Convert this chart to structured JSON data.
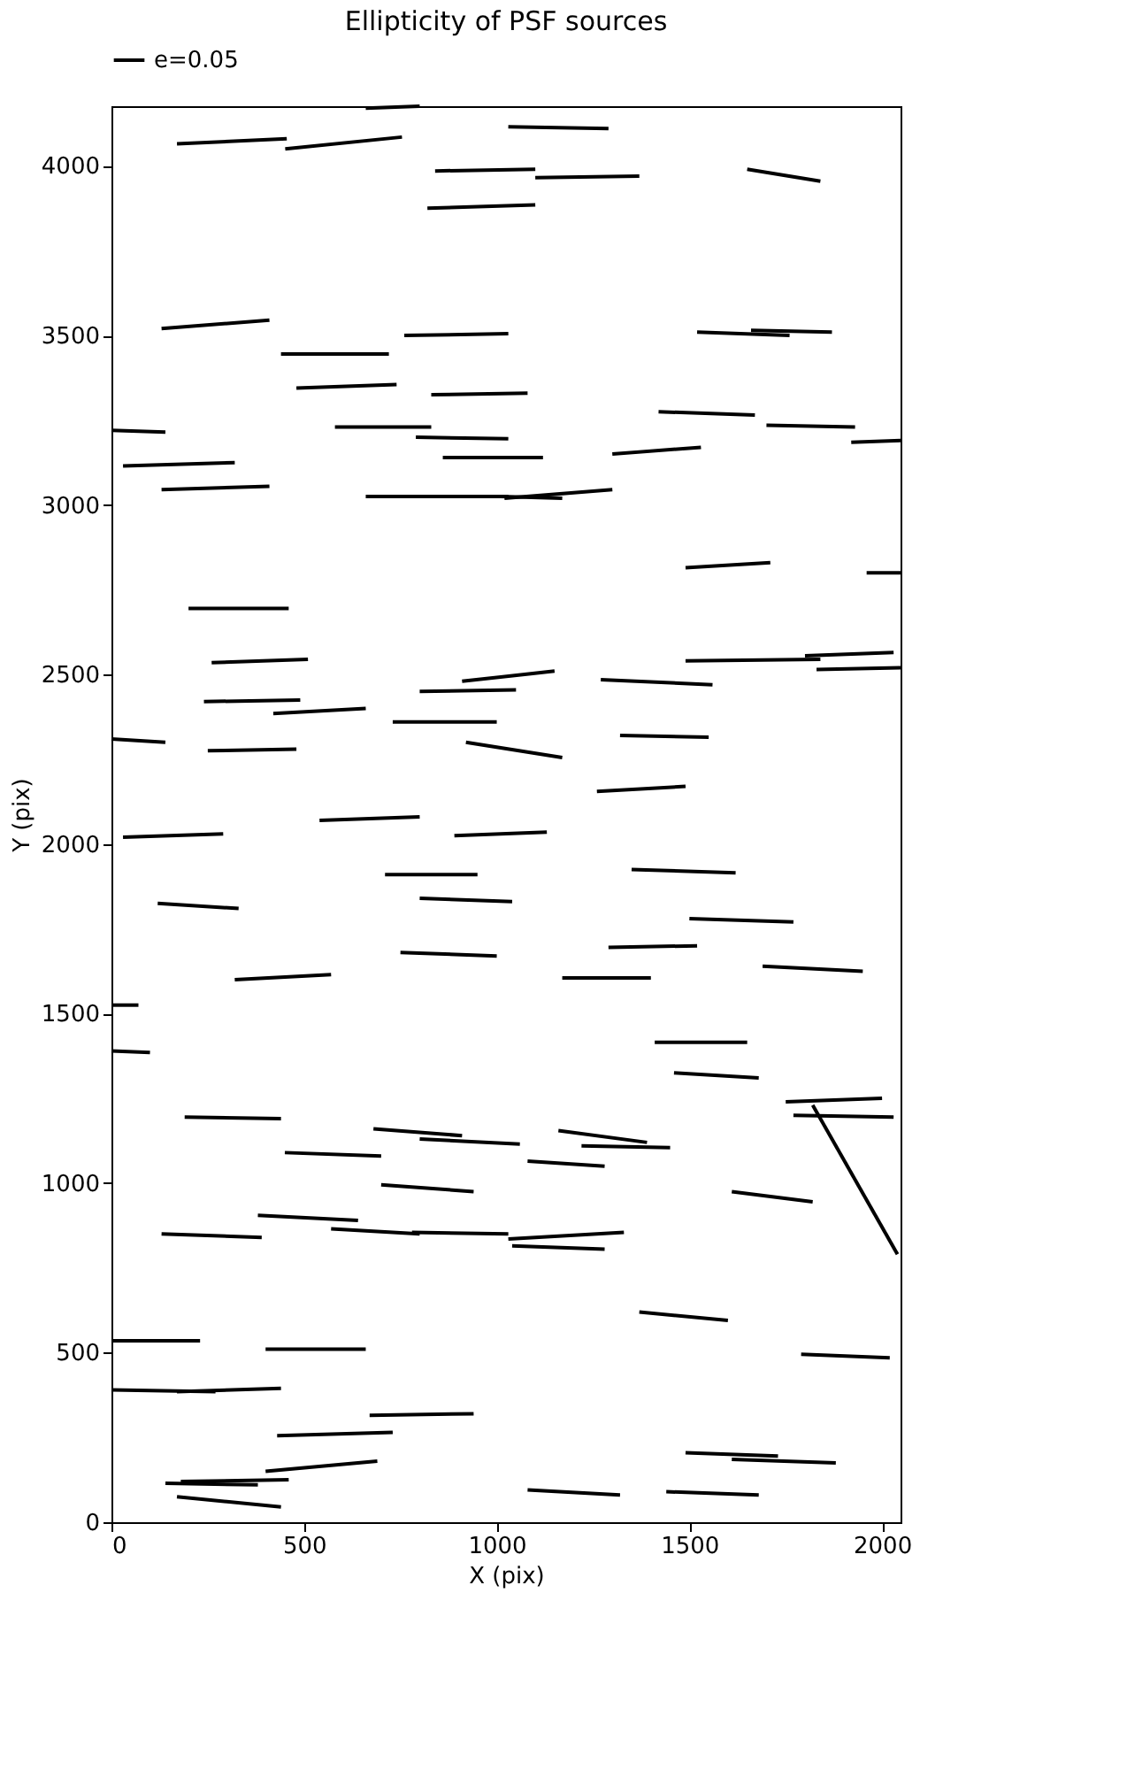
{
  "chart_data": {
    "type": "line",
    "title": "Ellipticity of PSF sources",
    "xlabel": "X (pix)",
    "ylabel": "Y (pix)",
    "xlim": [
      0,
      2048
    ],
    "ylim": [
      0,
      4176
    ],
    "xticks": [
      0,
      500,
      1000,
      1500,
      2000
    ],
    "yticks": [
      0,
      500,
      1000,
      1500,
      2000,
      2500,
      3000,
      3500,
      4000
    ],
    "grid": false,
    "legend": "top left",
    "marker": "none",
    "line_style": "solid",
    "series": [
      {
        "name": "e=0.05",
        "color": "#000000",
        "x": [
          660,
          800
        ],
        "values": [
          4170,
          4176
        ]
      },
      {
        "color": "#000000",
        "x": [
          1030,
          1290
        ],
        "values": [
          4115,
          4110
        ]
      },
      {
        "color": "#000000",
        "x": [
          170,
          455
        ],
        "values": [
          4065,
          4080
        ]
      },
      {
        "color": "#000000",
        "x": [
          451,
          754
        ],
        "values": [
          4050,
          4085
        ]
      },
      {
        "color": "#000000",
        "x": [
          840,
          1100
        ],
        "values": [
          3985,
          3990
        ]
      },
      {
        "color": "#000000",
        "x": [
          1100,
          1370
        ],
        "values": [
          3965,
          3970
        ]
      },
      {
        "color": "#000000",
        "x": [
          1650,
          1840
        ],
        "values": [
          3990,
          3955
        ]
      },
      {
        "color": "#000000",
        "x": [
          820,
          1100
        ],
        "values": [
          3875,
          3885
        ]
      },
      {
        "color": "#000000",
        "x": [
          130,
          410
        ],
        "values": [
          3520,
          3545
        ]
      },
      {
        "color": "#000000",
        "x": [
          440,
          720
        ],
        "values": [
          3445,
          3445
        ]
      },
      {
        "color": "#000000",
        "x": [
          760,
          1030
        ],
        "values": [
          3500,
          3505
        ]
      },
      {
        "color": "#000000",
        "x": [
          1520,
          1760
        ],
        "values": [
          3510,
          3500
        ]
      },
      {
        "color": "#000000",
        "x": [
          1660,
          1870
        ],
        "values": [
          3515,
          3510
        ]
      },
      {
        "color": "#000000",
        "x": [
          480,
          740
        ],
        "values": [
          3345,
          3355
        ]
      },
      {
        "color": "#000000",
        "x": [
          830,
          1080
        ],
        "values": [
          3325,
          3330
        ]
      },
      {
        "color": "#000000",
        "x": [
          0,
          140
        ],
        "values": [
          3220,
          3215
        ]
      },
      {
        "color": "#000000",
        "x": [
          580,
          830
        ],
        "values": [
          3230,
          3230
        ]
      },
      {
        "color": "#000000",
        "x": [
          1420,
          1670
        ],
        "values": [
          3275,
          3265
        ]
      },
      {
        "color": "#000000",
        "x": [
          1700,
          1930
        ],
        "values": [
          3235,
          3230
        ]
      },
      {
        "color": "#000000",
        "x": [
          1920,
          2048
        ],
        "values": [
          3185,
          3190
        ]
      },
      {
        "color": "#000000",
        "x": [
          30,
          320
        ],
        "values": [
          3115,
          3125
        ]
      },
      {
        "color": "#000000",
        "x": [
          790,
          1030
        ],
        "values": [
          3200,
          3195
        ]
      },
      {
        "color": "#000000",
        "x": [
          860,
          1120
        ],
        "values": [
          3140,
          3140
        ]
      },
      {
        "color": "#000000",
        "x": [
          1300,
          1530
        ],
        "values": [
          3150,
          3170
        ]
      },
      {
        "color": "#000000",
        "x": [
          130,
          410
        ],
        "values": [
          3045,
          3055
        ]
      },
      {
        "color": "#000000",
        "x": [
          660,
          1030
        ],
        "values": [
          3025,
          3025
        ]
      },
      {
        "color": "#000000",
        "x": [
          1010,
          1170
        ],
        "values": [
          3025,
          3020
        ]
      },
      {
        "color": "#000000",
        "x": [
          1020,
          1300
        ],
        "values": [
          3020,
          3045
        ]
      },
      {
        "color": "#000000",
        "x": [
          1490,
          1710
        ],
        "values": [
          2815,
          2830
        ]
      },
      {
        "color": "#000000",
        "x": [
          1960,
          2048
        ],
        "values": [
          2800,
          2800
        ]
      },
      {
        "color": "#000000",
        "x": [
          200,
          460
        ],
        "values": [
          2695,
          2695
        ]
      },
      {
        "color": "#000000",
        "x": [
          260,
          510
        ],
        "values": [
          2535,
          2545
        ]
      },
      {
        "color": "#000000",
        "x": [
          910,
          1150
        ],
        "values": [
          2480,
          2510
        ]
      },
      {
        "color": "#000000",
        "x": [
          1270,
          1560
        ],
        "values": [
          2485,
          2470
        ]
      },
      {
        "color": "#000000",
        "x": [
          1490,
          1840
        ],
        "values": [
          2540,
          2545
        ]
      },
      {
        "color": "#000000",
        "x": [
          1800,
          2030
        ],
        "values": [
          2555,
          2565
        ]
      },
      {
        "color": "#000000",
        "x": [
          1830,
          2048
        ],
        "values": [
          2515,
          2520
        ]
      },
      {
        "color": "#000000",
        "x": [
          240,
          490
        ],
        "values": [
          2420,
          2425
        ]
      },
      {
        "color": "#000000",
        "x": [
          420,
          660
        ],
        "values": [
          2385,
          2400
        ]
      },
      {
        "color": "#000000",
        "x": [
          800,
          1050
        ],
        "values": [
          2450,
          2455
        ]
      },
      {
        "color": "#000000",
        "x": [
          730,
          1000
        ],
        "values": [
          2360,
          2360
        ]
      },
      {
        "color": "#000000",
        "x": [
          0,
          140
        ],
        "values": [
          2310,
          2300
        ]
      },
      {
        "color": "#000000",
        "x": [
          920,
          1170
        ],
        "values": [
          2300,
          2255
        ]
      },
      {
        "color": "#000000",
        "x": [
          250,
          480
        ],
        "values": [
          2275,
          2280
        ]
      },
      {
        "color": "#000000",
        "x": [
          1320,
          1550
        ],
        "values": [
          2320,
          2315
        ]
      },
      {
        "color": "#000000",
        "x": [
          1260,
          1490
        ],
        "values": [
          2155,
          2170
        ]
      },
      {
        "color": "#000000",
        "x": [
          30,
          290
        ],
        "values": [
          2020,
          2030
        ]
      },
      {
        "color": "#000000",
        "x": [
          540,
          800
        ],
        "values": [
          2070,
          2080
        ]
      },
      {
        "color": "#000000",
        "x": [
          890,
          1130
        ],
        "values": [
          2025,
          2035
        ]
      },
      {
        "color": "#000000",
        "x": [
          710,
          950
        ],
        "values": [
          1910,
          1910
        ]
      },
      {
        "color": "#000000",
        "x": [
          1350,
          1620
        ],
        "values": [
          1925,
          1915
        ]
      },
      {
        "color": "#000000",
        "x": [
          120,
          330
        ],
        "values": [
          1825,
          1810
        ]
      },
      {
        "color": "#000000",
        "x": [
          800,
          1040
        ],
        "values": [
          1840,
          1830
        ]
      },
      {
        "color": "#000000",
        "x": [
          1500,
          1770
        ],
        "values": [
          1780,
          1770
        ]
      },
      {
        "color": "#000000",
        "x": [
          750,
          1000
        ],
        "values": [
          1680,
          1670
        ]
      },
      {
        "color": "#000000",
        "x": [
          1290,
          1520
        ],
        "values": [
          1695,
          1700
        ]
      },
      {
        "color": "#000000",
        "x": [
          320,
          570
        ],
        "values": [
          1600,
          1615
        ]
      },
      {
        "color": "#000000",
        "x": [
          1170,
          1400
        ],
        "values": [
          1605,
          1605
        ]
      },
      {
        "color": "#000000",
        "x": [
          1690,
          1950
        ],
        "values": [
          1640,
          1625
        ]
      },
      {
        "color": "#000000",
        "x": [
          0,
          70
        ],
        "values": [
          1525,
          1525
        ]
      },
      {
        "color": "#000000",
        "x": [
          0,
          100
        ],
        "values": [
          1390,
          1385
        ]
      },
      {
        "color": "#000000",
        "x": [
          1410,
          1650
        ],
        "values": [
          1415,
          1415
        ]
      },
      {
        "color": "#000000",
        "x": [
          1460,
          1680
        ],
        "values": [
          1325,
          1310
        ]
      },
      {
        "color": "#000000",
        "x": [
          1750,
          2000
        ],
        "values": [
          1240,
          1250
        ]
      },
      {
        "color": "#000000",
        "x": [
          1770,
          2030
        ],
        "values": [
          1200,
          1195
        ]
      },
      {
        "color": "#000000",
        "x": [
          1820,
          2040
        ],
        "values": [
          1230,
          790
        ]
      },
      {
        "color": "#000000",
        "x": [
          190,
          440
        ],
        "values": [
          1195,
          1190
        ]
      },
      {
        "color": "#000000",
        "x": [
          680,
          910
        ],
        "values": [
          1160,
          1140
        ]
      },
      {
        "color": "#000000",
        "x": [
          800,
          1060
        ],
        "values": [
          1130,
          1115
        ]
      },
      {
        "color": "#000000",
        "x": [
          1160,
          1390
        ],
        "values": [
          1155,
          1120
        ]
      },
      {
        "color": "#000000",
        "x": [
          1220,
          1450
        ],
        "values": [
          1110,
          1105
        ]
      },
      {
        "color": "#000000",
        "x": [
          450,
          700
        ],
        "values": [
          1090,
          1080
        ]
      },
      {
        "color": "#000000",
        "x": [
          1080,
          1280
        ],
        "values": [
          1065,
          1050
        ]
      },
      {
        "color": "#000000",
        "x": [
          700,
          940
        ],
        "values": [
          995,
          975
        ]
      },
      {
        "color": "#000000",
        "x": [
          380,
          640
        ],
        "values": [
          905,
          890
        ]
      },
      {
        "color": "#000000",
        "x": [
          1610,
          1820
        ],
        "values": [
          975,
          945
        ]
      },
      {
        "color": "#000000",
        "x": [
          130,
          390
        ],
        "values": [
          850,
          840
        ]
      },
      {
        "color": "#000000",
        "x": [
          570,
          800
        ],
        "values": [
          865,
          850
        ]
      },
      {
        "color": "#000000",
        "x": [
          780,
          1030
        ],
        "values": [
          855,
          850
        ]
      },
      {
        "color": "#000000",
        "x": [
          1030,
          1330
        ],
        "values": [
          835,
          855
        ]
      },
      {
        "color": "#000000",
        "x": [
          1040,
          1280
        ],
        "values": [
          815,
          805
        ]
      },
      {
        "color": "#000000",
        "x": [
          1370,
          1600
        ],
        "values": [
          620,
          595
        ]
      },
      {
        "color": "#000000",
        "x": [
          0,
          230
        ],
        "values": [
          535,
          535
        ]
      },
      {
        "color": "#000000",
        "x": [
          400,
          660
        ],
        "values": [
          510,
          510
        ]
      },
      {
        "color": "#000000",
        "x": [
          1790,
          2020
        ],
        "values": [
          495,
          485
        ]
      },
      {
        "color": "#000000",
        "x": [
          0,
          270
        ],
        "values": [
          390,
          385
        ]
      },
      {
        "color": "#000000",
        "x": [
          170,
          440
        ],
        "values": [
          385,
          395
        ]
      },
      {
        "color": "#000000",
        "x": [
          670,
          940
        ],
        "values": [
          315,
          320
        ]
      },
      {
        "color": "#000000",
        "x": [
          430,
          730
        ],
        "values": [
          255,
          265
        ]
      },
      {
        "color": "#000000",
        "x": [
          400,
          690
        ],
        "values": [
          150,
          180
        ]
      },
      {
        "color": "#000000",
        "x": [
          1490,
          1730
        ],
        "values": [
          205,
          195
        ]
      },
      {
        "color": "#000000",
        "x": [
          1610,
          1880
        ],
        "values": [
          185,
          175
        ]
      },
      {
        "color": "#000000",
        "x": [
          180,
          460
        ],
        "values": [
          120,
          125
        ]
      },
      {
        "color": "#000000",
        "x": [
          140,
          380
        ],
        "values": [
          115,
          110
        ]
      },
      {
        "color": "#000000",
        "x": [
          170,
          440
        ],
        "values": [
          75,
          45
        ]
      },
      {
        "color": "#000000",
        "x": [
          1080,
          1320
        ],
        "values": [
          95,
          80
        ]
      },
      {
        "color": "#000000",
        "x": [
          1440,
          1680
        ],
        "values": [
          90,
          80
        ]
      }
    ]
  }
}
